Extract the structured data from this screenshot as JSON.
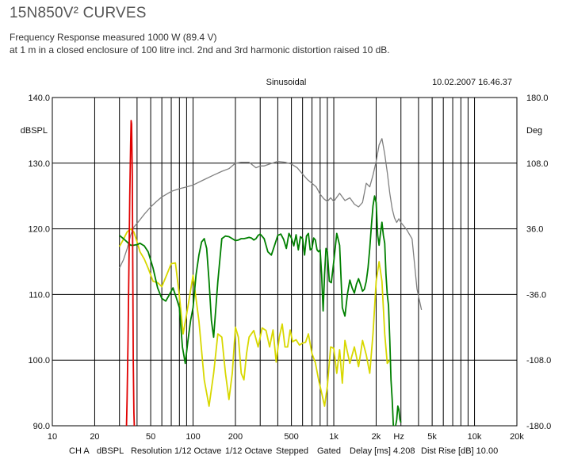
{
  "page": {
    "title": "15N850V² CURVES",
    "subtitle_line1": "Frequency Response measured 1000 W (89.4 V)",
    "subtitle_line2": "at 1 m in a closed enclosure of 100 litre incl. 2nd and 3rd harmonic distortion raised 10 dB."
  },
  "chart_data": {
    "type": "line",
    "title": "Sinusoidal",
    "timestamp": "10.02.2007 16.46.37",
    "x_scale": "log",
    "xlim": [
      10,
      20000
    ],
    "ylim": [
      90,
      140
    ],
    "ylim_right": [
      -180,
      180
    ],
    "ylabel": "dBSPL",
    "ylabel_right": "Deg",
    "grid": true,
    "x_tick_labels": [
      "10",
      "20",
      "50",
      "100",
      "200",
      "500",
      "1k",
      "2k",
      "5k",
      "10k",
      "20k"
    ],
    "x_unit_label": "Hz",
    "y_tick_labels": [
      "140.0",
      "130.0",
      "120.0",
      "110.0",
      "100.0",
      "90.0"
    ],
    "y_right_tick_labels": [
      "180.0",
      "108.0",
      "36.0",
      "-36.0",
      "-108.0",
      "-180.0"
    ],
    "footer": [
      "CH A",
      "dBSPL",
      "Resolution 1/12 Octave",
      "1/12 Octave",
      "Stepped",
      "Gated",
      "Delay [ms] 4.208",
      "Dist Rise [dB] 10.00"
    ],
    "colors": {
      "frequency_response": "#008000",
      "phase": "#808080",
      "distortion": "#d8d800",
      "resonance": "#e00000"
    },
    "series": [
      {
        "key": "frequency_response",
        "axis": "left",
        "x": [
          30,
          32,
          34,
          36,
          38,
          40,
          42,
          45,
          48,
          52,
          56,
          60,
          64,
          68,
          72,
          76,
          80,
          84,
          88,
          92,
          96,
          100,
          105,
          110,
          115,
          120,
          125,
          130,
          135,
          140,
          150,
          160,
          170,
          180,
          190,
          200,
          210,
          220,
          230,
          240,
          250,
          260,
          270,
          280,
          290,
          300,
          320,
          340,
          360,
          380,
          400,
          420,
          440,
          460,
          480,
          500,
          520,
          540,
          560,
          580,
          600,
          620,
          640,
          660,
          680,
          700,
          720,
          740,
          760,
          780,
          800,
          820,
          840,
          860,
          880,
          900,
          930,
          960,
          1000,
          1050,
          1100,
          1150,
          1200,
          1250,
          1300,
          1350,
          1400,
          1450,
          1500,
          1550,
          1600,
          1650,
          1700,
          1750,
          1800,
          1850,
          1900,
          1950,
          2000,
          2050,
          2100,
          2150,
          2200,
          2250,
          2300,
          2350,
          2400,
          2450,
          2500,
          2550,
          2600,
          2650,
          2700,
          2750,
          2800,
          2850,
          2900,
          2950,
          3000
        ],
        "y": [
          119,
          118.5,
          118,
          117.5,
          117.5,
          117.6,
          117.8,
          117.4,
          116.5,
          114,
          111,
          109.4,
          109.0,
          110,
          111,
          109.5,
          108.0,
          102,
          99.5,
          103,
          106,
          108,
          113,
          116,
          118,
          118.5,
          117,
          112,
          106,
          103.5,
          112,
          118.5,
          118.9,
          118.8,
          118.5,
          118.2,
          118.3,
          118.5,
          118.5,
          118.6,
          118.7,
          118.6,
          118.3,
          118.5,
          119.0,
          119.2,
          118.5,
          116.5,
          116.0,
          117.5,
          119.0,
          119.2,
          118.4,
          117.0,
          119.3,
          118.6,
          117.4,
          119.1,
          116.8,
          118.8,
          118.5,
          116.0,
          118.9,
          119.3,
          116.8,
          117.0,
          118.6,
          118.3,
          116.8,
          116.5,
          116.8,
          113,
          107.5,
          113,
          117.0,
          116.5,
          112,
          111.8,
          115,
          119.3,
          117.5,
          108,
          106.7,
          110,
          112.2,
          111.0,
          110.2,
          111.6,
          112.4,
          111.5,
          110.5,
          110.8,
          112,
          114,
          117,
          120.5,
          123.5,
          125.0,
          124,
          119,
          117.5,
          119.5,
          121,
          119,
          117.8,
          113,
          110,
          108.3,
          103,
          97,
          94.0,
          90,
          88.0,
          90,
          90.9,
          93,
          92.5,
          91,
          90.5
        ]
      },
      {
        "key": "phase",
        "axis": "right",
        "x": [
          30,
          32,
          34,
          36,
          38,
          40,
          42,
          45,
          50,
          55,
          60,
          70,
          80,
          90,
          100,
          120,
          140,
          160,
          180,
          200,
          220,
          250,
          280,
          300,
          320,
          350,
          400,
          450,
          500,
          550,
          600,
          650,
          700,
          750,
          800,
          850,
          900,
          950,
          1000,
          1100,
          1200,
          1300,
          1400,
          1500,
          1600,
          1700,
          1800,
          1900,
          2000,
          2100,
          2200,
          2300,
          2400,
          2500,
          2600,
          2700,
          2800,
          2900,
          3000,
          3300,
          3600,
          3900,
          4200
        ],
        "y": [
          -7,
          2,
          14,
          29,
          38,
          42,
          46,
          52,
          60,
          66,
          71,
          77,
          80,
          82,
          84,
          90,
          95,
          99,
          102,
          108,
          109,
          109,
          103,
          105,
          105,
          107,
          110,
          109,
          107,
          103,
          96,
          90,
          86,
          82,
          74,
          69,
          66,
          70,
          66,
          75,
          67,
          70,
          63,
          60,
          65,
          86,
          82,
          95,
          110,
          128,
          135,
          118,
          98,
          75,
          58,
          48,
          43,
          47,
          43,
          35,
          25,
          -30,
          -53
        ]
      },
      {
        "key": "distortion",
        "axis": "left",
        "x": [
          30,
          32,
          34,
          36,
          38,
          40,
          42,
          45,
          48,
          52,
          56,
          60,
          65,
          70,
          75,
          80,
          85,
          90,
          95,
          100,
          110,
          120,
          130,
          140,
          150,
          160,
          170,
          180,
          190,
          200,
          210,
          220,
          230,
          240,
          250,
          270,
          290,
          310,
          330,
          350,
          370,
          390,
          410,
          430,
          450,
          470,
          490,
          510,
          540,
          570,
          600,
          630,
          660,
          700,
          740,
          780,
          820,
          860,
          900,
          950,
          1000,
          1050,
          1100,
          1150,
          1200,
          1300,
          1400,
          1500,
          1600,
          1700,
          1800,
          1900,
          2000,
          2100,
          2200,
          2300,
          2400,
          2500
        ],
        "y": [
          117.3,
          118.4,
          119.5,
          120.0,
          119.5,
          118,
          116.5,
          115.4,
          114,
          112,
          111.8,
          111.2,
          113,
          114.7,
          114.8,
          109.8,
          104.0,
          107,
          110,
          112.9,
          106,
          97,
          93,
          98,
          104,
          103.5,
          98,
          94,
          98,
          105.0,
          103.5,
          98,
          97,
          101,
          103.5,
          104.5,
          102,
          104.9,
          104.5,
          102,
          104.6,
          99.7,
          103.5,
          105.5,
          102.0,
          102,
          104.6,
          102.8,
          103.1,
          102.3,
          102.6,
          102.7,
          104.0,
          101,
          99.6,
          97,
          95,
          93,
          96,
          102,
          101.8,
          98.0,
          101.6,
          96.5,
          103,
          99.5,
          102,
          99,
          103,
          100.8,
          98,
          104,
          112,
          115.0,
          112,
          104,
          99.5,
          100
        ]
      },
      {
        "key": "resonance",
        "axis": "left",
        "x": [
          33.5,
          34.0,
          34.5,
          35.0,
          35.5,
          36.0,
          36.3,
          36.6,
          37.0,
          37.3,
          37.6,
          38.0,
          38.5
        ],
        "y": [
          88,
          94,
          103,
          114,
          125,
          133,
          136.5,
          136.0,
          128,
          114,
          100,
          92,
          88
        ]
      }
    ]
  }
}
